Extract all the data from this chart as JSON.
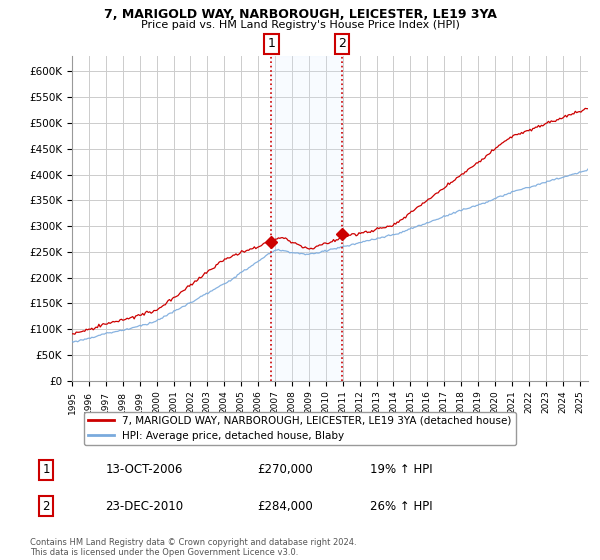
{
  "title1": "7, MARIGOLD WAY, NARBOROUGH, LEICESTER, LE19 3YA",
  "title2": "Price paid vs. HM Land Registry's House Price Index (HPI)",
  "ylim": [
    0,
    620000
  ],
  "yticks": [
    0,
    50000,
    100000,
    150000,
    200000,
    250000,
    300000,
    350000,
    400000,
    450000,
    500000,
    550000,
    600000
  ],
  "ytick_labels": [
    "£0",
    "£50K",
    "£100K",
    "£150K",
    "£200K",
    "£250K",
    "£300K",
    "£350K",
    "£400K",
    "£450K",
    "£500K",
    "£550K",
    "£600K"
  ],
  "xmin": 1995,
  "xmax": 2025.5,
  "marker1_x": 2006.79,
  "marker1_y": 270000,
  "marker1_label": "1",
  "marker1_date": "13-OCT-2006",
  "marker1_price": "£270,000",
  "marker1_hpi": "19% ↑ HPI",
  "marker2_x": 2010.98,
  "marker2_y": 284000,
  "marker2_label": "2",
  "marker2_date": "23-DEC-2010",
  "marker2_price": "£284,000",
  "marker2_hpi": "26% ↑ HPI",
  "legend1_label": "7, MARIGOLD WAY, NARBOROUGH, LEICESTER, LE19 3YA (detached house)",
  "legend2_label": "HPI: Average price, detached house, Blaby",
  "red_color": "#cc0000",
  "blue_color": "#7aaadd",
  "shade_color": "#ddeeff",
  "marker_box_color": "#cc0000",
  "footer": "Contains HM Land Registry data © Crown copyright and database right 2024.\nThis data is licensed under the Open Government Licence v3.0."
}
